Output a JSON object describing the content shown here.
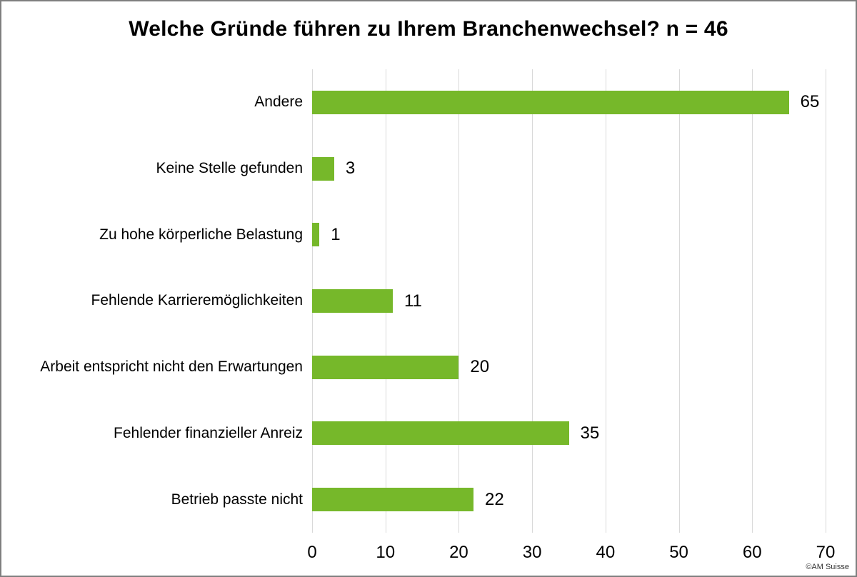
{
  "chart_data": {
    "type": "bar",
    "orientation": "horizontal",
    "title": "Welche Gründe führen zu Ihrem Branchenwechsel? n = 46",
    "categories": [
      "Andere",
      "Keine Stelle gefunden",
      "Zu hohe körperliche Belastung",
      "Fehlende Karrieremöglichkeiten",
      "Arbeit entspricht nicht den Erwartungen",
      "Fehlender finanzieller Anreiz",
      "Betrieb passte nicht"
    ],
    "values": [
      65,
      3,
      1,
      11,
      20,
      35,
      22
    ],
    "xlabel": "",
    "ylabel": "",
    "xlim": [
      0,
      70
    ],
    "xticks": [
      0,
      10,
      20,
      30,
      40,
      50,
      60,
      70
    ],
    "grid": true,
    "data_labels": true,
    "legend": false,
    "bar_color": "#76b82a",
    "gridline_color": "#d9d9d9",
    "frame_border_color": "#7f7f7f",
    "text_color": "#000000"
  },
  "footer": {
    "copyright": "©AM Suisse"
  }
}
